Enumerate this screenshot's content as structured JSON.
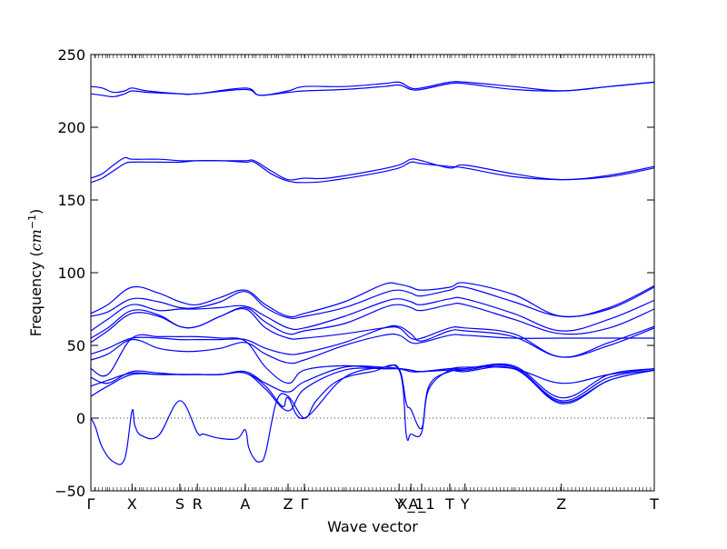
{
  "chart_data": {
    "type": "line",
    "title": "",
    "xlabel": "Wave vector",
    "ylabel": "Frequency ($cm^{-1}$)",
    "ylabel_display": {
      "prefix": "Frequency (",
      "unit": "cm",
      "exp": "−1",
      "suffix": ")"
    },
    "xlim": [
      0,
      1
    ],
    "ylim": [
      -50,
      250
    ],
    "yticks": [
      -50,
      0,
      50,
      100,
      150,
      200,
      250
    ],
    "yticks_labels": [
      "−50",
      "0",
      "50",
      "100",
      "150",
      "200",
      "250"
    ],
    "zero_line": {
      "y": 0,
      "style": "dotted"
    },
    "symmetry_points": [
      {
        "label": "Γ",
        "x": 0.0
      },
      {
        "label": "X",
        "x": 0.073
      },
      {
        "label": "S",
        "x": 0.158
      },
      {
        "label": "R",
        "x": 0.189
      },
      {
        "label": "A",
        "x": 0.274
      },
      {
        "label": "Z",
        "x": 0.35
      },
      {
        "label": "Γ",
        "x": 0.379
      },
      {
        "label": "Y",
        "x": 0.547
      },
      {
        "label": "X_1",
        "x": 0.568
      },
      {
        "label": "A_1",
        "x": 0.587
      },
      {
        "label": "T",
        "x": 0.637
      },
      {
        "label": "Y",
        "x": 0.664
      },
      {
        "label": "Z",
        "x": 0.835
      },
      {
        "label": "T",
        "x": 1.0
      }
    ],
    "line_color": "#0000ff",
    "series": [
      {
        "x": [
          0,
          0.02,
          0.04,
          0.06,
          0.073,
          0.1,
          0.158,
          0.189,
          0.274,
          0.3,
          0.35,
          0.379,
          0.45,
          0.52,
          0.547,
          0.568,
          0.587,
          0.637,
          0.664,
          0.75,
          0.835,
          0.92,
          1.0
        ],
        "y": [
          228,
          227,
          224,
          225,
          227,
          225,
          223,
          223,
          227,
          222,
          225,
          228,
          228,
          230,
          231,
          227,
          227,
          231,
          231,
          228,
          225,
          228,
          231
        ]
      },
      {
        "x": [
          0,
          0.02,
          0.04,
          0.06,
          0.073,
          0.1,
          0.158,
          0.189,
          0.274,
          0.3,
          0.35,
          0.379,
          0.45,
          0.52,
          0.547,
          0.568,
          0.587,
          0.637,
          0.664,
          0.75,
          0.835,
          0.92,
          1.0
        ],
        "y": [
          223,
          222,
          221,
          223,
          225,
          224,
          223,
          223,
          226,
          222,
          224,
          225,
          226,
          228,
          229,
          226,
          226,
          230,
          230,
          226,
          225,
          228,
          231
        ]
      },
      {
        "x": [
          0,
          0.02,
          0.04,
          0.06,
          0.073,
          0.12,
          0.158,
          0.189,
          0.23,
          0.274,
          0.29,
          0.32,
          0.35,
          0.379,
          0.42,
          0.5,
          0.547,
          0.568,
          0.587,
          0.637,
          0.664,
          0.75,
          0.835,
          0.92,
          1.0
        ],
        "y": [
          165,
          168,
          174,
          179,
          178,
          178,
          177,
          177,
          177,
          177,
          177,
          170,
          164,
          165,
          165,
          170,
          174,
          178,
          177,
          172,
          174,
          168,
          164,
          167,
          173
        ]
      },
      {
        "x": [
          0,
          0.02,
          0.04,
          0.06,
          0.073,
          0.12,
          0.158,
          0.189,
          0.23,
          0.274,
          0.29,
          0.32,
          0.35,
          0.379,
          0.42,
          0.5,
          0.547,
          0.568,
          0.587,
          0.637,
          0.664,
          0.75,
          0.835,
          0.92,
          1.0
        ],
        "y": [
          162,
          165,
          170,
          175,
          176,
          176,
          176,
          177,
          177,
          176,
          176,
          168,
          163,
          162,
          163,
          168,
          172,
          176,
          175,
          173,
          172,
          166,
          164,
          166,
          172
        ]
      },
      {
        "x": [
          0,
          0.03,
          0.073,
          0.12,
          0.158,
          0.189,
          0.23,
          0.274,
          0.31,
          0.35,
          0.379,
          0.45,
          0.52,
          0.547,
          0.568,
          0.587,
          0.637,
          0.664,
          0.75,
          0.835,
          0.92,
          1.0
        ],
        "y": [
          72,
          78,
          90,
          86,
          80,
          78,
          83,
          88,
          78,
          70,
          72,
          80,
          92,
          92,
          90,
          88,
          90,
          93,
          85,
          70,
          76,
          91
        ]
      },
      {
        "x": [
          0,
          0.03,
          0.073,
          0.12,
          0.158,
          0.189,
          0.23,
          0.274,
          0.31,
          0.35,
          0.379,
          0.45,
          0.52,
          0.547,
          0.568,
          0.587,
          0.637,
          0.664,
          0.75,
          0.835,
          0.92,
          1.0
        ],
        "y": [
          70,
          73,
          82,
          80,
          76,
          76,
          80,
          87,
          76,
          69,
          70,
          76,
          86,
          88,
          86,
          84,
          88,
          90,
          80,
          70,
          75,
          90
        ]
      },
      {
        "x": [
          0,
          0.03,
          0.073,
          0.12,
          0.158,
          0.189,
          0.23,
          0.274,
          0.31,
          0.35,
          0.379,
          0.45,
          0.52,
          0.547,
          0.568,
          0.587,
          0.637,
          0.664,
          0.75,
          0.835,
          0.92,
          1.0
        ],
        "y": [
          60,
          68,
          78,
          74,
          75,
          75,
          76,
          77,
          70,
          62,
          62,
          70,
          80,
          82,
          80,
          78,
          82,
          82,
          72,
          60,
          68,
          81
        ]
      },
      {
        "x": [
          0,
          0.03,
          0.073,
          0.12,
          0.158,
          0.189,
          0.23,
          0.274,
          0.31,
          0.35,
          0.379,
          0.45,
          0.52,
          0.547,
          0.568,
          0.587,
          0.637,
          0.664,
          0.75,
          0.835,
          0.92,
          1.0
        ],
        "y": [
          55,
          62,
          74,
          71,
          63,
          63,
          70,
          76,
          66,
          58,
          60,
          65,
          76,
          78,
          76,
          74,
          78,
          78,
          68,
          58,
          62,
          75
        ]
      },
      {
        "x": [
          0,
          0.03,
          0.073,
          0.12,
          0.158,
          0.189,
          0.23,
          0.274,
          0.31,
          0.35,
          0.379,
          0.45,
          0.52,
          0.547,
          0.568,
          0.587,
          0.637,
          0.664,
          0.75,
          0.835,
          0.92,
          1.0
        ],
        "y": [
          52,
          60,
          72,
          70,
          63,
          63,
          70,
          75,
          62,
          55,
          55,
          58,
          62,
          62,
          55,
          55,
          62,
          62,
          58,
          42,
          52,
          63
        ]
      },
      {
        "x": [
          0,
          0.03,
          0.073,
          0.12,
          0.158,
          0.189,
          0.23,
          0.274,
          0.31,
          0.35,
          0.379,
          0.45,
          0.52,
          0.547,
          0.568,
          0.587,
          0.637,
          0.664,
          0.75,
          0.835,
          0.92,
          1.0
        ],
        "y": [
          44,
          48,
          55,
          55,
          54,
          54,
          54,
          54,
          48,
          44,
          45,
          52,
          62,
          63,
          58,
          53,
          60,
          60,
          56,
          42,
          50,
          62
        ]
      },
      {
        "x": [
          0,
          0.03,
          0.073,
          0.12,
          0.158,
          0.189,
          0.23,
          0.274,
          0.31,
          0.35,
          0.379,
          0.45,
          0.52,
          0.547,
          0.568,
          0.587,
          0.637,
          0.664,
          0.75,
          0.835,
          0.92,
          1.0
        ],
        "y": [
          40,
          44,
          54,
          48,
          46,
          46,
          48,
          52,
          44,
          38,
          40,
          50,
          57,
          57,
          52,
          52,
          57,
          57,
          55,
          55,
          55,
          55
        ]
      },
      {
        "x": [
          0,
          0.03,
          0.073,
          0.12,
          0.158,
          0.189,
          0.23,
          0.274,
          0.31,
          0.35,
          0.379,
          0.45,
          0.52,
          0.547,
          0.568,
          0.587,
          0.637,
          0.664,
          0.75,
          0.835,
          0.92,
          1.0
        ],
        "y": [
          34,
          30,
          55,
          56,
          56,
          56,
          55,
          53,
          35,
          24,
          33,
          36,
          34,
          34,
          33,
          32,
          34,
          35,
          34,
          24,
          30,
          34
        ]
      },
      {
        "x": [
          0,
          0.03,
          0.073,
          0.12,
          0.158,
          0.189,
          0.23,
          0.274,
          0.31,
          0.35,
          0.379,
          0.45,
          0.52,
          0.547,
          0.568,
          0.587,
          0.637,
          0.664,
          0.75,
          0.835,
          0.92,
          1.0
        ],
        "y": [
          28,
          24,
          32,
          31,
          30,
          30,
          30,
          32,
          24,
          18,
          25,
          35,
          35,
          34,
          32,
          32,
          34,
          34,
          36,
          14,
          30,
          34
        ]
      },
      {
        "x": [
          0,
          0.03,
          0.073,
          0.12,
          0.158,
          0.189,
          0.23,
          0.274,
          0.31,
          0.35,
          0.379,
          0.45,
          0.52,
          0.547,
          0.568,
          0.587,
          0.637,
          0.664,
          0.75,
          0.835,
          0.92,
          1.0
        ],
        "y": [
          22,
          26,
          31,
          30,
          30,
          30,
          30,
          31,
          20,
          5,
          20,
          33,
          34,
          34,
          33,
          32,
          33,
          33,
          35,
          12,
          28,
          33
        ]
      },
      {
        "x": [
          0,
          0.03,
          0.073,
          0.12,
          0.158,
          0.189,
          0.23,
          0.274,
          0.31,
          0.34,
          0.35,
          0.379,
          0.45,
          0.52,
          0.547,
          0.56,
          0.568,
          0.587,
          0.6,
          0.637,
          0.664,
          0.75,
          0.835,
          0.92,
          1.0
        ],
        "y": [
          15,
          22,
          30,
          30,
          30,
          30,
          30,
          31,
          22,
          8,
          14,
          0,
          28,
          35,
          34,
          10,
          6,
          -7,
          20,
          33,
          33,
          35,
          10,
          26,
          33
        ]
      },
      {
        "x": [
          0,
          0.008,
          0.02,
          0.04,
          0.06,
          0.073,
          0.078,
          0.09,
          0.12,
          0.158,
          0.189,
          0.2,
          0.23,
          0.26,
          0.274,
          0.28,
          0.29,
          0.3,
          0.31,
          0.33,
          0.35,
          0.379,
          0.4,
          0.44,
          0.5,
          0.547,
          0.56,
          0.568,
          0.587,
          0.6,
          0.637,
          0.664,
          0.75,
          0.835,
          0.92,
          1.0
        ],
        "y": [
          0,
          -6,
          -20,
          -30,
          -28,
          5,
          -5,
          -12,
          -12,
          12,
          -10,
          -11,
          -14,
          -14,
          -8,
          -20,
          -28,
          -30,
          -24,
          12,
          15,
          0,
          12,
          26,
          32,
          33,
          -12,
          -11,
          -10,
          22,
          32,
          32,
          34,
          11,
          26,
          33
        ]
      }
    ]
  }
}
